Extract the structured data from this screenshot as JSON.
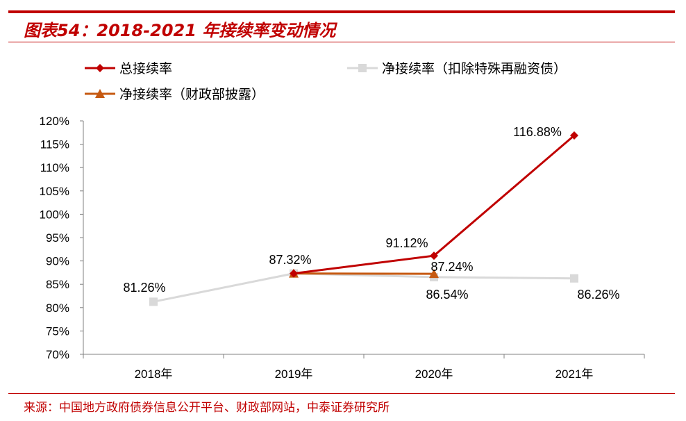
{
  "title": "图表54：2018-2021 年接续率变动情况",
  "source": "来源：中国地方政府债券信息公开平台、财政部网站，中泰证券研究所",
  "colors": {
    "total": "#c00000",
    "net_adjusted": "#d9d9d9",
    "net_mof": "#c65911",
    "accent": "#c00000"
  },
  "chart_data": {
    "type": "line",
    "title": "2018-2021 年接续率变动情况",
    "xlabel": "",
    "ylabel": "",
    "categories": [
      "2018年",
      "2019年",
      "2020年",
      "2021年"
    ],
    "ylim": [
      70,
      120
    ],
    "yticks": [
      "70%",
      "75%",
      "80%",
      "85%",
      "90%",
      "95%",
      "100%",
      "105%",
      "110%",
      "115%",
      "120%"
    ],
    "series": [
      {
        "name": "总接续率",
        "marker": "diamond",
        "values": [
          null,
          87.32,
          91.12,
          116.88
        ]
      },
      {
        "name": "净接续率（扣除特殊再融资债）",
        "marker": "square",
        "values": [
          81.26,
          87.32,
          86.54,
          86.26
        ]
      },
      {
        "name": "净接续率（财政部披露）",
        "marker": "triangle",
        "values": [
          null,
          87.32,
          87.24,
          null
        ]
      }
    ],
    "data_labels": [
      {
        "text": "81.26%"
      },
      {
        "text": "87.32%"
      },
      {
        "text": "91.12%"
      },
      {
        "text": "87.24%"
      },
      {
        "text": "86.54%"
      },
      {
        "text": "116.88%"
      },
      {
        "text": "86.26%"
      }
    ],
    "legend": "top-left"
  }
}
